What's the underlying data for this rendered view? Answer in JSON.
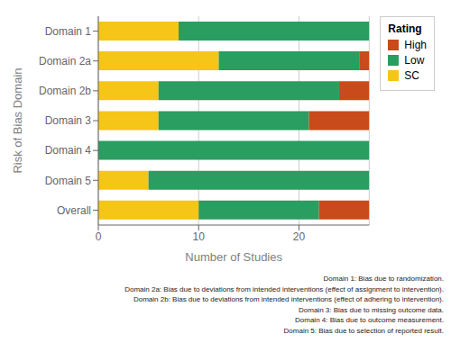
{
  "chart_data": {
    "type": "bar",
    "orientation": "horizontal",
    "stacked": true,
    "categories": [
      "Overall",
      "Domain 5",
      "Domain 4",
      "Domain 3",
      "Domain 2b",
      "Domain 2a",
      "Domain 1"
    ],
    "series": [
      {
        "name": "SC",
        "color": "#F5C518",
        "values": [
          10,
          5,
          0,
          6,
          6,
          12,
          8
        ]
      },
      {
        "name": "Low",
        "color": "#2A9D60",
        "values": [
          12,
          22,
          27,
          15,
          18,
          14,
          19
        ]
      },
      {
        "name": "High",
        "color": "#C94A1A",
        "values": [
          5,
          0,
          0,
          6,
          3,
          1,
          0
        ]
      }
    ],
    "xlabel": "Number of Studies",
    "ylabel": "Risk of Bias Domain",
    "xlim": [
      0,
      27
    ],
    "xticks": [
      0,
      10,
      20
    ],
    "grid": true,
    "legend": "right",
    "legend_title": "Rating",
    "annotations": [
      "Domain 1: Bias due to randomization.",
      "Domain 2a: Bias due to deviations from intended interventions (effect of assignment to intervention).",
      "Domain 2b: Bias due to deviations from intended interventions (effect of adhering to intervention).",
      "Domain 3: Bias due to missing outcome data.",
      "Domain 4: Bias due to outcome measurement.",
      "Domain 5: Bias due to selection of reported result."
    ]
  }
}
